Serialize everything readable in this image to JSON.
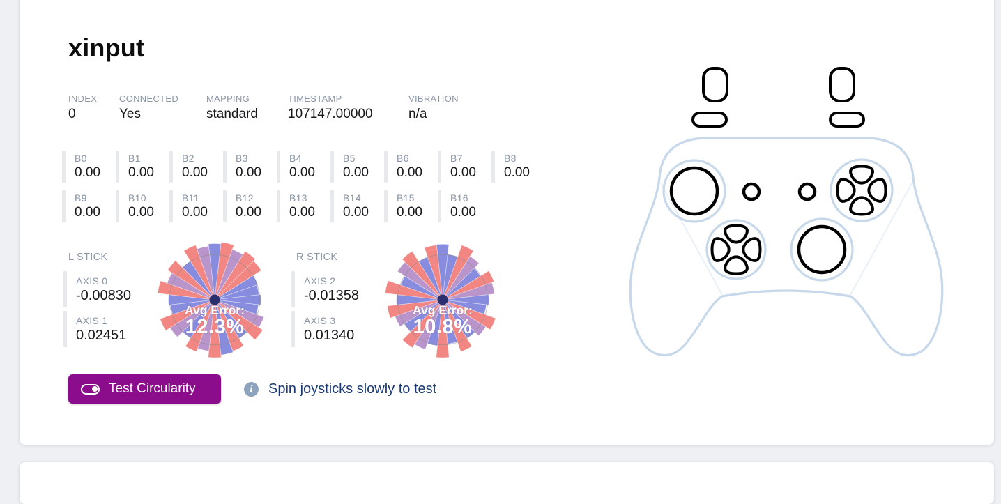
{
  "colors": {
    "page_bg": "#eef0f3",
    "card_bg": "#ffffff",
    "label": "#8a95a6",
    "value": "#17181a",
    "gauge_bar": "#e7e9ed",
    "accent_purple": "#8b0d8b",
    "hint_text": "#1c3a70",
    "info_icon_bg": "#8da2bd",
    "outline_blue": "#c7d8eb",
    "outline_faint": "#e8f0f8"
  },
  "wheel": {
    "palette": {
      "red": "#f0716c",
      "blue": "#7278d8",
      "mix": "#ad82c2"
    },
    "opacity": 0.85,
    "ref_circle_ratio": 0.78,
    "ref_circle_color": "#8a8a8a",
    "center_dot_color": "#2c2f6e"
  },
  "card": {
    "title": "xinput",
    "meta": [
      {
        "label": "INDEX",
        "value": "0"
      },
      {
        "label": "CONNECTED",
        "value": "Yes"
      },
      {
        "label": "MAPPING",
        "value": "standard"
      },
      {
        "label": "TIMESTAMP",
        "value": "107147.00000"
      },
      {
        "label": "VIBRATION",
        "value": "n/a"
      }
    ],
    "buttons": [
      {
        "label": "B0",
        "value": "0.00"
      },
      {
        "label": "B1",
        "value": "0.00"
      },
      {
        "label": "B2",
        "value": "0.00"
      },
      {
        "label": "B3",
        "value": "0.00"
      },
      {
        "label": "B4",
        "value": "0.00"
      },
      {
        "label": "B5",
        "value": "0.00"
      },
      {
        "label": "B6",
        "value": "0.00"
      },
      {
        "label": "B7",
        "value": "0.00"
      },
      {
        "label": "B8",
        "value": "0.00"
      },
      {
        "label": "B9",
        "value": "0.00"
      },
      {
        "label": "B10",
        "value": "0.00"
      },
      {
        "label": "B11",
        "value": "0.00"
      },
      {
        "label": "B12",
        "value": "0.00"
      },
      {
        "label": "B13",
        "value": "0.00"
      },
      {
        "label": "B14",
        "value": "0.00"
      },
      {
        "label": "B15",
        "value": "0.00"
      },
      {
        "label": "B16",
        "value": "0.00"
      }
    ],
    "sticks": [
      {
        "name": "L STICK",
        "axes": [
          {
            "label": "AXIS 0",
            "value": "-0.00830"
          },
          {
            "label": "AXIS 1",
            "value": "0.02451"
          }
        ],
        "avg_error_label": "Avg Error:",
        "avg_error_value": "12.3%",
        "wheel_sectors": [
          {
            "r": 0.97,
            "c": "blue"
          },
          {
            "r": 1.0,
            "c": "red"
          },
          {
            "r": 0.92,
            "c": "mix"
          },
          {
            "r": 0.99,
            "c": "red"
          },
          {
            "r": 0.95,
            "c": "red"
          },
          {
            "r": 0.79,
            "c": "blue"
          },
          {
            "r": 0.77,
            "c": "blue"
          },
          {
            "r": 0.8,
            "c": "blue"
          },
          {
            "r": 0.76,
            "c": "blue"
          },
          {
            "r": 0.9,
            "c": "mix"
          },
          {
            "r": 0.98,
            "c": "red"
          },
          {
            "r": 0.79,
            "c": "blue"
          },
          {
            "r": 0.94,
            "c": "red"
          },
          {
            "r": 0.96,
            "c": "blue"
          },
          {
            "r": 1.0,
            "c": "red"
          },
          {
            "r": 0.89,
            "c": "mix"
          },
          {
            "r": 0.95,
            "c": "red"
          },
          {
            "r": 0.78,
            "c": "blue"
          },
          {
            "r": 0.91,
            "c": "mix"
          },
          {
            "r": 1.0,
            "c": "red"
          },
          {
            "r": 0.77,
            "c": "blue"
          },
          {
            "r": 0.8,
            "c": "blue"
          },
          {
            "r": 0.99,
            "c": "red"
          },
          {
            "r": 0.87,
            "c": "mix"
          },
          {
            "r": 0.96,
            "c": "red"
          },
          {
            "r": 0.79,
            "c": "blue"
          },
          {
            "r": 1.0,
            "c": "red"
          },
          {
            "r": 0.93,
            "c": "mix"
          }
        ]
      },
      {
        "name": "R STICK",
        "axes": [
          {
            "label": "AXIS 2",
            "value": "-0.01358"
          },
          {
            "label": "AXIS 3",
            "value": "0.01340"
          }
        ],
        "avg_error_label": "Avg Error:",
        "avg_error_value": "10.8%",
        "wheel_sectors": [
          {
            "r": 0.96,
            "c": "blue"
          },
          {
            "r": 0.79,
            "c": "blue"
          },
          {
            "r": 1.0,
            "c": "red"
          },
          {
            "r": 0.89,
            "c": "mix"
          },
          {
            "r": 0.77,
            "c": "blue"
          },
          {
            "r": 0.94,
            "c": "red"
          },
          {
            "r": 0.9,
            "c": "mix"
          },
          {
            "r": 0.8,
            "c": "blue"
          },
          {
            "r": 0.76,
            "c": "blue"
          },
          {
            "r": 0.97,
            "c": "red"
          },
          {
            "r": 0.88,
            "c": "mix"
          },
          {
            "r": 0.79,
            "c": "blue"
          },
          {
            "r": 0.95,
            "c": "red"
          },
          {
            "r": 0.77,
            "c": "blue"
          },
          {
            "r": 1.0,
            "c": "red"
          },
          {
            "r": 0.8,
            "c": "blue"
          },
          {
            "r": 0.91,
            "c": "mix"
          },
          {
            "r": 0.98,
            "c": "red"
          },
          {
            "r": 0.78,
            "c": "blue"
          },
          {
            "r": 0.87,
            "c": "mix"
          },
          {
            "r": 0.96,
            "c": "red"
          },
          {
            "r": 0.8,
            "c": "blue"
          },
          {
            "r": 1.0,
            "c": "red"
          },
          {
            "r": 0.77,
            "c": "blue"
          },
          {
            "r": 0.92,
            "c": "mix"
          },
          {
            "r": 0.99,
            "c": "red"
          },
          {
            "r": 0.78,
            "c": "blue"
          },
          {
            "r": 0.95,
            "c": "red"
          }
        ]
      }
    ],
    "actions": {
      "test_button_label": "Test Circularity",
      "info_glyph": "i",
      "hint_text": "Spin joysticks slowly to test"
    }
  }
}
